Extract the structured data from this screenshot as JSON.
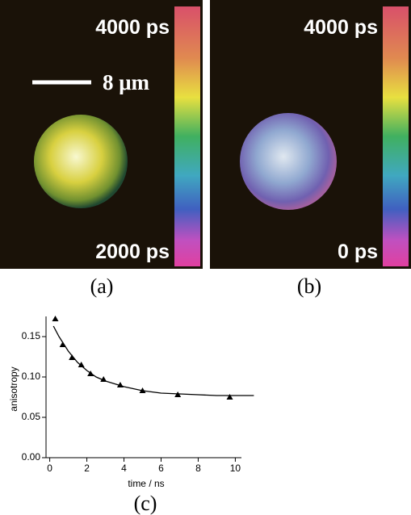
{
  "panels": [
    {
      "top_label": "4000 ps",
      "bottom_label": "2000 ps",
      "scale_label": "8 μm",
      "caption": "(a)"
    },
    {
      "top_label": "4000 ps",
      "bottom_label": "0 ps",
      "caption": "(b)"
    }
  ],
  "chart_data": {
    "type": "scatter",
    "xlabel": "time / ns",
    "ylabel": "anisotropy",
    "caption": "(c)",
    "xlim": [
      -0.2,
      11.2
    ],
    "ylim": [
      0,
      0.175
    ],
    "xticks": [
      0,
      2,
      4,
      6,
      8,
      10
    ],
    "yticks": [
      {
        "value": 0,
        "label": "0.00"
      },
      0.05,
      {
        "value": 0.1,
        "label": "0.10"
      },
      0.15
    ],
    "series": [
      {
        "color": "#000000",
        "marker": "triangle",
        "x": [
          0.3,
          0.7,
          1.2,
          1.7,
          2.2,
          2.9,
          3.8,
          5.0,
          6.9,
          9.7
        ],
        "values": [
          0.172,
          0.14,
          0.124,
          0.115,
          0.104,
          0.097,
          0.09,
          0.083,
          0.078,
          0.075
        ]
      },
      {
        "color": "#000000",
        "marker": "line",
        "x": [
          0.2,
          0.5,
          1,
          1.5,
          2,
          2.5,
          3,
          4,
          5,
          6,
          7,
          8,
          9,
          10,
          11
        ],
        "values": [
          0.163,
          0.15,
          0.132,
          0.118,
          0.108,
          0.1,
          0.095,
          0.088,
          0.083,
          0.08,
          0.079,
          0.078,
          0.077,
          0.077,
          0.077
        ]
      }
    ]
  }
}
